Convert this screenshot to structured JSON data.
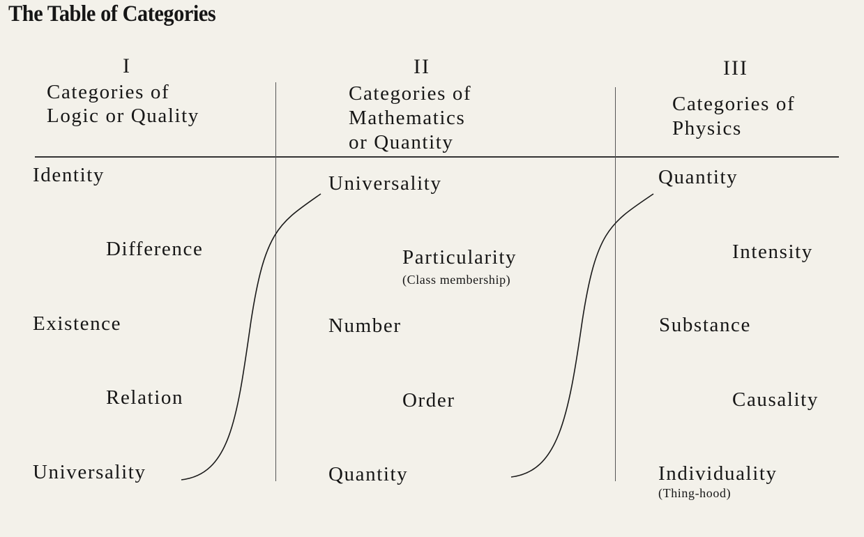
{
  "title": "The Table of Categories",
  "columns": [
    {
      "numeral": "I",
      "heading": [
        "Categories of",
        "Logic or Quality"
      ],
      "items": [
        "Identity",
        "Difference",
        "Existence",
        "Relation",
        "Universality"
      ]
    },
    {
      "numeral": "II",
      "heading": [
        "Categories of",
        "Mathematics",
        "or Quantity"
      ],
      "items": [
        "Universality",
        "Particularity",
        "Number",
        "Order",
        "Quantity"
      ],
      "notes": {
        "particularity": "(Class membership)"
      }
    },
    {
      "numeral": "III",
      "heading": [
        "Categories of",
        "Physics"
      ],
      "items": [
        "Quantity",
        "Intensity",
        "Substance",
        "Causality",
        "Individuality"
      ],
      "notes": {
        "individuality": "(Thing-hood)"
      }
    }
  ],
  "connectors": [
    {
      "from": "I: Universality",
      "to": "II: Universality"
    },
    {
      "from": "II: Quantity",
      "to": "III: Quantity"
    }
  ]
}
